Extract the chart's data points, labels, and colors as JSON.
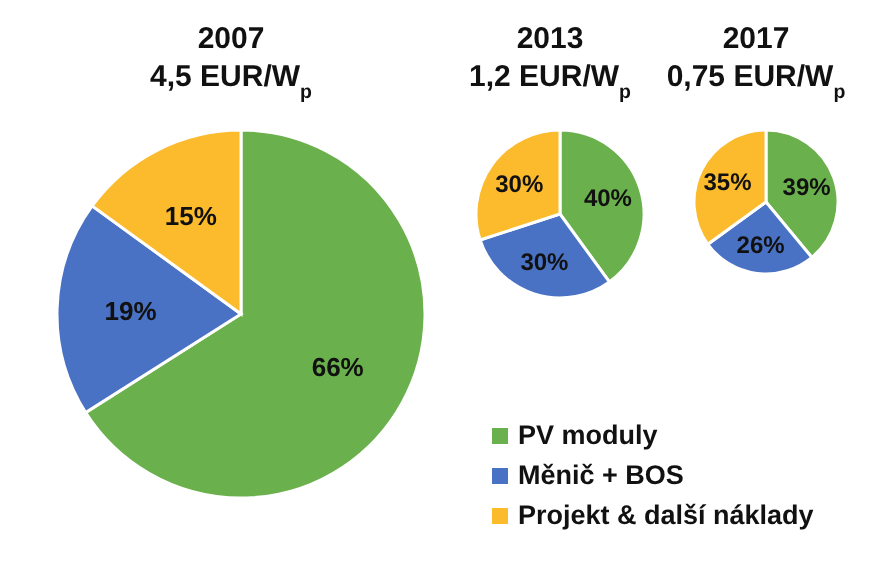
{
  "chart_data": [
    {
      "type": "pie",
      "title": "2007",
      "subtitle": "4,5 EUR/W$_{p}$",
      "categories": [
        "PV moduly",
        "Měnič + BOS",
        "Projekt & další náklady"
      ],
      "values": [
        66,
        19,
        15
      ],
      "value_labels": [
        "66%",
        "19%",
        "15%"
      ],
      "colors": [
        "#6ab04c",
        "#4a72c4",
        "#fbbb2d"
      ],
      "legend": "bottom right"
    },
    {
      "type": "pie",
      "title": "2013",
      "subtitle": "1,2 EUR/W$_{p}$",
      "categories": [
        null,
        null,
        null
      ],
      "values": [
        40,
        30,
        30
      ],
      "value_labels": [
        "40%",
        "30%",
        "30%"
      ],
      "colors": [
        "#6ab04c",
        "#4a72c4",
        "#fbbb2d"
      ]
    },
    {
      "type": "pie",
      "title": "2017",
      "subtitle": "0,75 EUR/W$_{p}$",
      "categories": [
        null,
        null,
        null
      ],
      "values": [
        39,
        26,
        35
      ],
      "value_labels": [
        "39%",
        "26%",
        "35%"
      ],
      "colors": [
        "#6ab04c",
        "#4a72c4",
        "#fbbb2d"
      ]
    }
  ]
}
